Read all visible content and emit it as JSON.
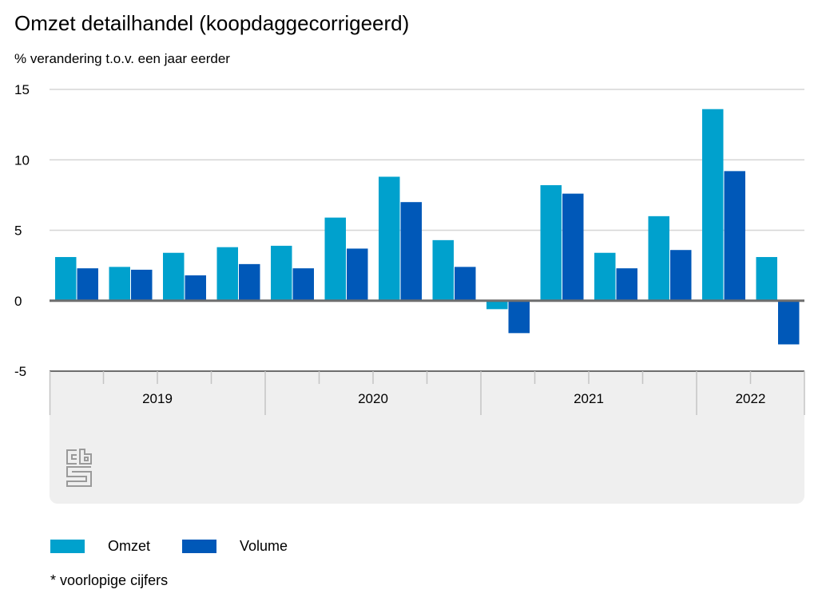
{
  "chart_data": {
    "type": "bar",
    "title": "Omzet detailhandel (koopdaggecorrigeerd)",
    "subtitle": "% verandering t.o.v. een jaar eerder",
    "xlabel": "",
    "ylabel": "% verandering t.o.v. een jaar eerder",
    "ylim": [
      -5,
      15
    ],
    "yticks": [
      15,
      10,
      5,
      0,
      -5
    ],
    "ytick_labels": [
      "15",
      "10",
      "5",
      "0",
      "-5"
    ],
    "grid": true,
    "categories": [
      "2019 Q1",
      "2019 Q2",
      "2019 Q3",
      "2019 Q4",
      "2020 Q1",
      "2020 Q2",
      "2020 Q3",
      "2020 Q4",
      "2021 Q1",
      "2021 Q2",
      "2021 Q3",
      "2021 Q4",
      "2022 Q1",
      "2022 Q2"
    ],
    "year_groups": [
      {
        "label": "2019",
        "quarters": 4
      },
      {
        "label": "2020",
        "quarters": 4
      },
      {
        "label": "2021",
        "quarters": 4
      },
      {
        "label": "2022",
        "quarters": 2
      }
    ],
    "series": [
      {
        "name": "Omzet",
        "color": "#00a1cd",
        "values": [
          3.1,
          2.4,
          3.4,
          3.8,
          3.9,
          5.9,
          8.8,
          4.3,
          -0.6,
          8.2,
          3.4,
          6.0,
          13.6,
          3.1
        ]
      },
      {
        "name": "Volume",
        "color": "#0058b8",
        "values": [
          2.3,
          2.2,
          1.8,
          2.6,
          2.3,
          3.7,
          7.0,
          2.4,
          -2.3,
          7.6,
          2.3,
          3.6,
          9.2,
          -3.1
        ]
      }
    ],
    "legend_position": "bottom-left",
    "footnote": "* voorlopige cijfers"
  },
  "logo": {
    "icon": "cbs-logo-icon"
  }
}
